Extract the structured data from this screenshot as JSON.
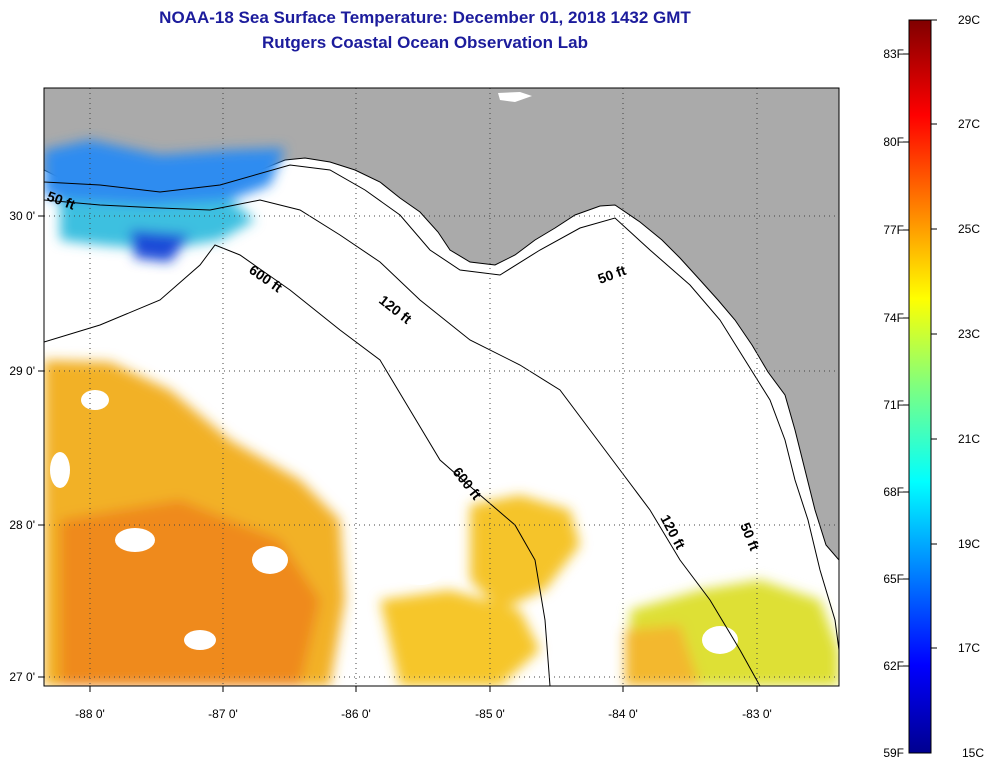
{
  "header": {
    "title_line1": "NOAA-18 Sea Surface Temperature:  December 01, 2018 1432 GMT",
    "title_line2": "Rutgers Coastal Ocean Observation Lab"
  },
  "map": {
    "lon_labels": [
      "-88 0'",
      "-87 0'",
      "-86 0'",
      "-85 0'",
      "-84 0'",
      "-83 0'"
    ],
    "lat_labels": [
      "30 0'",
      "29 0'",
      "28 0'",
      "27 0'"
    ],
    "contour_labels": [
      "50 ft",
      "600 ft",
      "120 ft",
      "50 ft",
      "600 ft",
      "120 ft",
      "50 ft"
    ]
  },
  "colorbar": {
    "fahrenheit_labels": [
      "83F",
      "80F",
      "77F",
      "74F",
      "71F",
      "68F",
      "65F",
      "62F",
      "59F"
    ],
    "celsius_labels": [
      "29C",
      "27C",
      "25C",
      "23C",
      "21C",
      "19C",
      "17C",
      "15C"
    ]
  },
  "colors": {
    "title": "#1c1c9c",
    "land": "#aaaaaa",
    "warm_sst": "#f0a820",
    "cool_sst": "#2a9af0"
  }
}
